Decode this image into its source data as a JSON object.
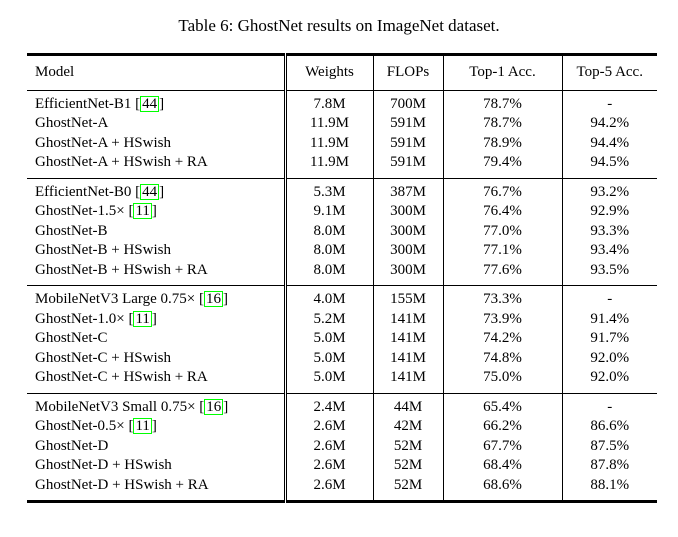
{
  "title": "Table 6: GhostNet results on ImageNet dataset.",
  "table": {
    "columns": [
      "Model",
      "Weights",
      "FLOPs",
      "Top-1 Acc.",
      "Top-5 Acc."
    ],
    "cite_box_color": "#00ff00",
    "text_color": "#000000",
    "groups": [
      {
        "rows": [
          {
            "model": "EfficientNet-B1",
            "cite": "44",
            "weights": "7.8M",
            "flops": "700M",
            "top1": "78.7%",
            "top5": "-"
          },
          {
            "model": "GhostNet-A",
            "cite": "",
            "weights": "11.9M",
            "flops": "591M",
            "top1": "78.7%",
            "top5": "94.2%"
          },
          {
            "model": "GhostNet-A + HSwish",
            "cite": "",
            "weights": "11.9M",
            "flops": "591M",
            "top1": "78.9%",
            "top5": "94.4%"
          },
          {
            "model": "GhostNet-A + HSwish + RA",
            "cite": "",
            "weights": "11.9M",
            "flops": "591M",
            "top1": "79.4%",
            "top5": "94.5%"
          }
        ]
      },
      {
        "rows": [
          {
            "model": "EfficientNet-B0",
            "cite": "44",
            "weights": "5.3M",
            "flops": "387M",
            "top1": "76.7%",
            "top5": "93.2%"
          },
          {
            "model": "GhostNet-1.5×",
            "cite": "11",
            "weights": "9.1M",
            "flops": "300M",
            "top1": "76.4%",
            "top5": "92.9%"
          },
          {
            "model": "GhostNet-B",
            "cite": "",
            "weights": "8.0M",
            "flops": "300M",
            "top1": "77.0%",
            "top5": "93.3%"
          },
          {
            "model": "GhostNet-B + HSwish",
            "cite": "",
            "weights": "8.0M",
            "flops": "300M",
            "top1": "77.1%",
            "top5": "93.4%"
          },
          {
            "model": "GhostNet-B + HSwish + RA",
            "cite": "",
            "weights": "8.0M",
            "flops": "300M",
            "top1": "77.6%",
            "top5": "93.5%"
          }
        ]
      },
      {
        "rows": [
          {
            "model": "MobileNetV3 Large 0.75×",
            "cite": "16",
            "weights": "4.0M",
            "flops": "155M",
            "top1": "73.3%",
            "top5": "-"
          },
          {
            "model": "GhostNet-1.0×",
            "cite": "11",
            "weights": "5.2M",
            "flops": "141M",
            "top1": "73.9%",
            "top5": "91.4%"
          },
          {
            "model": "GhostNet-C",
            "cite": "",
            "weights": "5.0M",
            "flops": "141M",
            "top1": "74.2%",
            "top5": "91.7%"
          },
          {
            "model": "GhostNet-C + HSwish",
            "cite": "",
            "weights": "5.0M",
            "flops": "141M",
            "top1": "74.8%",
            "top5": "92.0%"
          },
          {
            "model": "GhostNet-C + HSwish + RA",
            "cite": "",
            "weights": "5.0M",
            "flops": "141M",
            "top1": "75.0%",
            "top5": "92.0%"
          }
        ]
      },
      {
        "rows": [
          {
            "model": "MobileNetV3 Small 0.75×",
            "cite": "16",
            "weights": "2.4M",
            "flops": "44M",
            "top1": "65.4%",
            "top5": "-"
          },
          {
            "model": "GhostNet-0.5×",
            "cite": "11",
            "weights": "2.6M",
            "flops": "42M",
            "top1": "66.2%",
            "top5": "86.6%"
          },
          {
            "model": "GhostNet-D",
            "cite": "",
            "weights": "2.6M",
            "flops": "52M",
            "top1": "67.7%",
            "top5": "87.5%"
          },
          {
            "model": "GhostNet-D + HSwish",
            "cite": "",
            "weights": "2.6M",
            "flops": "52M",
            "top1": "68.4%",
            "top5": "87.8%"
          },
          {
            "model": "GhostNet-D + HSwish + RA",
            "cite": "",
            "weights": "2.6M",
            "flops": "52M",
            "top1": "68.6%",
            "top5": "88.1%"
          }
        ]
      }
    ]
  }
}
